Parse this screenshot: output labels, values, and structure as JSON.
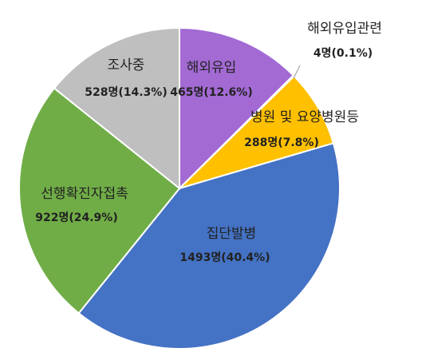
{
  "chart_data": {
    "type": "pie",
    "categories": [
      "해외유입",
      "해외유입관련",
      "병원 및 요양병원등",
      "집단발병",
      "선행확진자접촉",
      "조사중"
    ],
    "values": [
      465,
      4,
      288,
      1493,
      922,
      528
    ],
    "value_labels": [
      "465명(12.6%)",
      "4명(0.1%)",
      "288명(7.8%)",
      "1493명(40.4%)",
      "922명(24.9%)",
      "528명(14.3%)"
    ],
    "colors": [
      "#a36ad4",
      "#d9d9d9",
      "#ffc000",
      "#4472c4",
      "#70ad47",
      "#bfbfbf"
    ]
  }
}
